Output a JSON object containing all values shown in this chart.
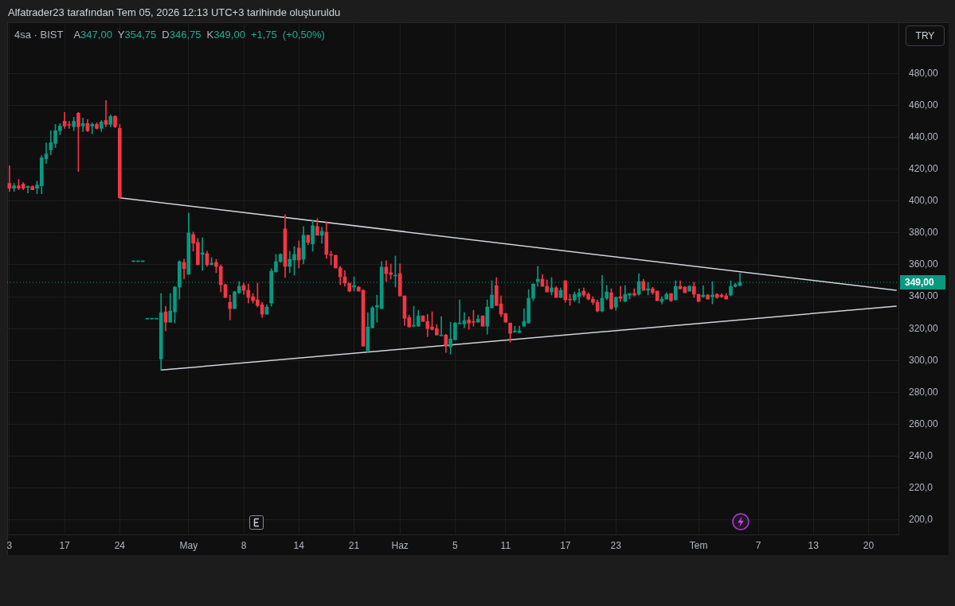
{
  "chart_data": {
    "type": "candlestick",
    "title": "Alfatrader23 tarafından Tem 05, 2026 12:13 UTC+3 tarihinde oluşturuldu",
    "subtitle": "4sa · BIST",
    "annotations": [
      "A347,00 Y354,75 D346,75 K349,00 +1,75 (+0,50%)",
      "TRY"
    ],
    "categories": [
      "3",
      null,
      null,
      null,
      null,
      null,
      null,
      null,
      null,
      null,
      null,
      null,
      "17",
      null,
      null,
      null,
      null,
      null,
      null,
      null,
      null,
      null,
      null,
      null,
      "24",
      null,
      null,
      null,
      null,
      null,
      null,
      null,
      null,
      null,
      null,
      null,
      null,
      null,
      null,
      "May",
      null,
      null,
      null,
      null,
      null,
      null,
      null,
      null,
      null,
      null,
      null,
      "8",
      null,
      null,
      null,
      null,
      null,
      null,
      null,
      null,
      null,
      null,
      null,
      "14",
      null,
      null,
      null,
      null,
      null,
      null,
      null,
      null,
      null,
      null,
      null,
      "21",
      null,
      null,
      null,
      null,
      null,
      null,
      null,
      null,
      null,
      "Haz",
      null,
      null,
      null,
      null,
      null,
      null,
      null,
      null,
      null,
      null,
      null,
      "5",
      null,
      null,
      null,
      null,
      null,
      null,
      null,
      null,
      null,
      null,
      "11",
      null,
      null,
      null,
      null,
      null,
      null,
      null,
      null,
      null,
      null,
      null,
      null,
      "17",
      null,
      null,
      null,
      null,
      null,
      null,
      null,
      null,
      null,
      null,
      "23",
      null,
      null,
      null,
      null,
      null,
      null,
      null,
      null,
      null,
      null,
      null,
      null,
      null,
      null,
      null,
      null,
      null,
      "Tem",
      null,
      null,
      null,
      null,
      null,
      null,
      null,
      null,
      null,
      null,
      null,
      null,
      "7",
      null,
      null,
      null,
      null,
      null,
      null,
      null,
      null,
      null,
      null,
      null,
      "13",
      null,
      null,
      null,
      null,
      null,
      null,
      null,
      null,
      null,
      null,
      null,
      "20",
      null,
      null,
      null,
      null,
      null,
      null
    ],
    "ohlc": [
      [
        411,
        422,
        406,
        408
      ],
      [
        408,
        411,
        406,
        409.5
      ],
      [
        409.5,
        413.5,
        407,
        408
      ],
      [
        410.5,
        411.5,
        407,
        408
      ],
      [
        408.5,
        409.5,
        405,
        409
      ],
      [
        409,
        409.5,
        407,
        407
      ],
      [
        408,
        412.5,
        404.5,
        410
      ],
      [
        409.5,
        428.5,
        404.5,
        427
      ],
      [
        426.5,
        436.5,
        423.5,
        429.5
      ],
      [
        432,
        444,
        429,
        436.5
      ],
      [
        436,
        448,
        433.5,
        444
      ],
      [
        444,
        448.5,
        441.5,
        447
      ],
      [
        450,
        455.5,
        445.5,
        447
      ],
      [
        448,
        450,
        445.5,
        447.5
      ],
      [
        446.5,
        452.5,
        444,
        450
      ],
      [
        455,
        455.5,
        418.5,
        446.5
      ],
      [
        447,
        452,
        443.5,
        448.5
      ],
      [
        448.5,
        451,
        443.5,
        444
      ],
      [
        447,
        449,
        442,
        448
      ],
      [
        448,
        449,
        445,
        445.5
      ],
      [
        445.5,
        450.5,
        443.5,
        449.5
      ],
      [
        450.5,
        463,
        446.5,
        448
      ],
      [
        448,
        454,
        446.5,
        453
      ],
      [
        453,
        453.5,
        446,
        446.5
      ],
      [
        445.5,
        448,
        402,
        402
      ],
      null,
      null,
      [
        362,
        362,
        362,
        362
      ],
      [
        362,
        362,
        362,
        362
      ],
      [
        362,
        362,
        362,
        362
      ],
      [
        326,
        326,
        326,
        326
      ],
      [
        326,
        326,
        326,
        326
      ],
      [
        326,
        326,
        326,
        326
      ],
      [
        301,
        342,
        294,
        330
      ],
      [
        330.5,
        334,
        318.5,
        324
      ],
      [
        324,
        342,
        324,
        331
      ],
      [
        330.5,
        346.5,
        323.5,
        346
      ],
      [
        346,
        362.5,
        338.5,
        362
      ],
      [
        361.5,
        363.5,
        351,
        357.5
      ],
      [
        354,
        392.5,
        354,
        380
      ],
      [
        379,
        380.5,
        368.5,
        373.5
      ],
      [
        374,
        376.5,
        360,
        360
      ],
      [
        366.5,
        377,
        356.5,
        367.5
      ],
      [
        367,
        368.5,
        359,
        360
      ],
      [
        360,
        364.5,
        360,
        361
      ],
      [
        361.5,
        363.5,
        355,
        359
      ],
      [
        359,
        360,
        343,
        347.5
      ],
      [
        347.5,
        348,
        339.5,
        339.5
      ],
      [
        336.5,
        341,
        325.5,
        332.5
      ],
      [
        332.5,
        343.5,
        332.5,
        343
      ],
      [
        342.5,
        349.5,
        342,
        346.5
      ],
      [
        347,
        348.5,
        341.5,
        344
      ],
      [
        344,
        348,
        336,
        339.5
      ],
      [
        340,
        342,
        336,
        337.5
      ],
      [
        338,
        348.5,
        333.5,
        334.5
      ],
      [
        335,
        336.5,
        327,
        329
      ],
      [
        329,
        335,
        329,
        333.5
      ],
      [
        336,
        357.5,
        334,
        356
      ],
      [
        355.5,
        366.5,
        355.5,
        362
      ],
      [
        362,
        367,
        361.5,
        366.5
      ],
      [
        382.5,
        391.5,
        352,
        359
      ],
      [
        359,
        368.5,
        355,
        363.5
      ],
      [
        363,
        371.5,
        353.5,
        366.5
      ],
      [
        370.5,
        375,
        358,
        363
      ],
      [
        363.5,
        384,
        360.5,
        378.5
      ],
      [
        378.5,
        378.5,
        372.5,
        374
      ],
      [
        373,
        388,
        368.5,
        384.5
      ],
      [
        384,
        389,
        378.5,
        378.5
      ],
      [
        378.5,
        383.5,
        373.5,
        381
      ],
      [
        380.5,
        387,
        364,
        366.5
      ],
      [
        366.5,
        368.5,
        360,
        366
      ],
      [
        366,
        366,
        358,
        358
      ],
      [
        358,
        359,
        347.5,
        352.5
      ],
      [
        352.5,
        356.5,
        346.5,
        348.5
      ],
      [
        348.5,
        348.5,
        343,
        343.5
      ],
      [
        346,
        352.5,
        343.5,
        347
      ],
      [
        346,
        346.5,
        343.5,
        343.5
      ],
      [
        344,
        344.5,
        309,
        309
      ],
      [
        306,
        330,
        305,
        321
      ],
      [
        320.5,
        334,
        320.5,
        333
      ],
      [
        333.5,
        341,
        324,
        334.5
      ],
      [
        332.5,
        362,
        332.5,
        358.5
      ],
      [
        358.5,
        362.5,
        349.5,
        354.5
      ],
      [
        355,
        360.5,
        351,
        354
      ],
      [
        353,
        365.5,
        346,
        353.5
      ],
      [
        354.5,
        360.5,
        340.5,
        340.5
      ],
      [
        340.5,
        340.5,
        322,
        326.5
      ],
      [
        327,
        328.5,
        321,
        321
      ],
      [
        321.5,
        334,
        321,
        322
      ],
      [
        321.5,
        331.5,
        321.5,
        328
      ],
      [
        328,
        328,
        324.5,
        324.5
      ],
      [
        324.5,
        329,
        315,
        320
      ],
      [
        321,
        330.5,
        319,
        319.5
      ],
      [
        320,
        322.5,
        316,
        316
      ],
      [
        315.5,
        327.5,
        315.5,
        316
      ],
      [
        316,
        316.5,
        305,
        309
      ],
      [
        308.5,
        324,
        304,
        313.5
      ],
      [
        313,
        324,
        313,
        323.5
      ],
      [
        323,
        338,
        323,
        323.5
      ],
      [
        323,
        330,
        320.5,
        325
      ],
      [
        325.5,
        327.5,
        319.5,
        323.5
      ],
      [
        324.5,
        331.5,
        321.5,
        324
      ],
      [
        324,
        328.5,
        324,
        326
      ],
      [
        328,
        328,
        321.5,
        321.5
      ],
      [
        321.5,
        338,
        316.5,
        333.5
      ],
      [
        333,
        350,
        333,
        341
      ],
      [
        347,
        352,
        334.5,
        334.5
      ],
      [
        335.5,
        340.5,
        327.5,
        329
      ],
      [
        329.5,
        329.5,
        324,
        324
      ],
      [
        323.5,
        323.5,
        311.5,
        317
      ],
      [
        318,
        321.5,
        317.5,
        318.5
      ],
      [
        317.5,
        321.5,
        317.5,
        318.5
      ],
      [
        321.5,
        332.5,
        321.5,
        324.5
      ],
      [
        323.5,
        344.5,
        323.5,
        339
      ],
      [
        339,
        348,
        337.5,
        348
      ],
      [
        349.5,
        359,
        346.5,
        351
      ],
      [
        351,
        354,
        346.5,
        346.5
      ],
      [
        346.5,
        350.5,
        343,
        343
      ],
      [
        343,
        352,
        341,
        345.5
      ],
      [
        345.5,
        346.5,
        339.5,
        339.5
      ],
      [
        339.5,
        345.5,
        339.5,
        344
      ],
      [
        350,
        350,
        336.5,
        338
      ],
      [
        338.5,
        341.5,
        334.5,
        338
      ],
      [
        338,
        343,
        337,
        341.5
      ],
      [
        340,
        345,
        336,
        342.5
      ],
      [
        343.5,
        345.5,
        340,
        341
      ],
      [
        341.5,
        342.5,
        338,
        338.5
      ],
      [
        338.5,
        340,
        335,
        336.5
      ],
      [
        336.5,
        338,
        330.5,
        331
      ],
      [
        331,
        353.5,
        330.5,
        339
      ],
      [
        339,
        347,
        338,
        343
      ],
      [
        342.5,
        345,
        332,
        332.5
      ],
      [
        333.5,
        340,
        331.5,
        339.5
      ],
      [
        340,
        346.5,
        337,
        339
      ],
      [
        337,
        347,
        337,
        341.5
      ],
      [
        341,
        342,
        338.5,
        342
      ],
      [
        342,
        345,
        340.5,
        341
      ],
      [
        341.5,
        354.5,
        341,
        349.5
      ],
      [
        349.5,
        351,
        344,
        344
      ],
      [
        344,
        349,
        341,
        345
      ],
      [
        345,
        346,
        341.5,
        342.5
      ],
      [
        343.5,
        343.5,
        337.5,
        337.5
      ],
      [
        337,
        340,
        335.5,
        338.5
      ],
      [
        338.5,
        342.5,
        338.5,
        341.5
      ],
      [
        342,
        342,
        337,
        337.5
      ],
      [
        338,
        350,
        338,
        346.5
      ],
      [
        346.5,
        350,
        344.5,
        345
      ],
      [
        346,
        346.5,
        342.5,
        342.5
      ],
      [
        343.5,
        347,
        343.5,
        346.5
      ],
      [
        346.5,
        349,
        339.5,
        341.5
      ],
      [
        341.5,
        341.5,
        337,
        337
      ],
      [
        340,
        347,
        339.5,
        341
      ],
      [
        341,
        341.5,
        338.5,
        338.5
      ],
      [
        340,
        349.5,
        335.5,
        341
      ],
      [
        341.5,
        342,
        339,
        339.5
      ],
      [
        341,
        342,
        339.5,
        340
      ],
      [
        340.5,
        342,
        338.5,
        338.5
      ],
      [
        341,
        350,
        340.5,
        346.5
      ],
      [
        346.5,
        348.5,
        346,
        347.5
      ],
      [
        347,
        354.75,
        346.75,
        349
      ],
      null,
      null,
      null,
      null,
      null,
      null,
      null,
      null,
      null,
      null,
      null,
      null,
      null,
      null,
      null,
      null,
      null,
      null,
      null,
      null,
      null,
      null,
      null,
      null,
      null,
      null,
      null,
      null,
      null,
      null,
      null,
      null,
      null,
      null
    ],
    "colors": [
      "#f23645",
      "#089981",
      "#f23645",
      "#f23645",
      "#089981",
      "#f23645",
      "#089981",
      "#089981",
      "#089981",
      "#089981",
      "#089981",
      "#089981",
      "#f23645",
      "#f23645",
      "#089981",
      "#f23645",
      "#089981",
      "#f23645",
      "#089981",
      "#f23645",
      "#089981",
      "#f23645",
      "#089981",
      "#f23645",
      "#f23645",
      null,
      null,
      "#089981",
      "#089981",
      "#089981",
      "#089981",
      "#089981",
      "#089981",
      "#089981",
      "#f23645",
      "#089981",
      "#089981",
      "#089981",
      "#f23645",
      "#089981",
      "#f23645",
      "#f23645",
      "#089981",
      "#f23645",
      "#089981",
      "#f23645",
      "#f23645",
      "#f23645",
      "#f23645",
      "#089981",
      "#089981",
      "#f23645",
      "#f23645",
      "#f23645",
      "#f23645",
      "#f23645",
      "#089981",
      "#089981",
      "#089981",
      "#089981",
      "#f23645",
      "#089981",
      "#089981",
      "#f23645",
      "#089981",
      "#f23645",
      "#089981",
      "#f23645",
      "#089981",
      "#f23645",
      "#f23645",
      "#f23645",
      "#f23645",
      "#f23645",
      "#f23645",
      "#089981",
      "#f23645",
      "#f23645",
      "#089981",
      "#089981",
      "#089981",
      "#089981",
      "#f23645",
      "#f23645",
      "#089981",
      "#f23645",
      "#f23645",
      "#f23645",
      "#089981",
      "#089981",
      "#f23645",
      "#f23645",
      "#f23645",
      "#f23645",
      "#089981",
      "#f23645",
      "#089981",
      "#089981",
      "#089981",
      "#089981",
      "#f23645",
      "#f23645",
      "#089981",
      "#f23645",
      "#089981",
      "#089981",
      "#f23645",
      "#f23645",
      "#f23645",
      "#f23645",
      "#089981",
      "#089981",
      "#089981",
      "#089981",
      "#089981",
      "#089981",
      "#f23645",
      "#f23645",
      "#089981",
      "#f23645",
      "#089981",
      "#f23645",
      "#f23645",
      "#089981",
      "#089981",
      "#f23645",
      "#f23645",
      "#f23645",
      "#f23645",
      "#089981",
      "#089981",
      "#f23645",
      "#089981",
      "#f23645",
      "#089981",
      "#089981",
      "#f23645",
      "#089981",
      "#f23645",
      "#089981",
      "#f23645",
      "#f23645",
      "#089981",
      "#089981",
      "#f23645",
      "#089981",
      "#f23645",
      "#f23645",
      "#089981",
      "#f23645",
      "#f23645",
      "#089981",
      "#f23645",
      "#089981",
      "#f23645",
      "#f23645",
      "#f23645",
      "#089981",
      "#089981",
      "#089981",
      null,
      null,
      null,
      null,
      null,
      null,
      null,
      null,
      null,
      null,
      null,
      null,
      null,
      null,
      null,
      null,
      null,
      null,
      null,
      null,
      null,
      null,
      null,
      null,
      null,
      null,
      null,
      null,
      null,
      null,
      null,
      null,
      null,
      null
    ],
    "series": [
      {
        "type": "line",
        "color": "#d1d4dc",
        "values": [
          null,
          null,
          null,
          null,
          null,
          null,
          null,
          null,
          null,
          null,
          null,
          null,
          null,
          null,
          null,
          null,
          null,
          null,
          null,
          null,
          null,
          null,
          null,
          null,
          402,
          null,
          null,
          null,
          null,
          null,
          null,
          null,
          null,
          null,
          null,
          null,
          null,
          null,
          null,
          null,
          null,
          null,
          null,
          null,
          null,
          null,
          null,
          null,
          null,
          null,
          null,
          null,
          null,
          null,
          null,
          null,
          null,
          null,
          null,
          null,
          null,
          null,
          null,
          null,
          null,
          null,
          null,
          null,
          null,
          null,
          null,
          null,
          null,
          null,
          null,
          null,
          null,
          null,
          null,
          null,
          null,
          null,
          null,
          null,
          null,
          null,
          null,
          null,
          null,
          null,
          null,
          null,
          null,
          null,
          null,
          null,
          null,
          null,
          null,
          null,
          null,
          null,
          null,
          null,
          null,
          null,
          null,
          null,
          null,
          null,
          null,
          null,
          null,
          null,
          null,
          null,
          null,
          null,
          null,
          null,
          null,
          null,
          null,
          null,
          null,
          null,
          null,
          null,
          null,
          null,
          null,
          null,
          null,
          null,
          null,
          null,
          null,
          null,
          null,
          null,
          null,
          null,
          null,
          null,
          null,
          null,
          null,
          null,
          null,
          null,
          null,
          null,
          null,
          null,
          null,
          null,
          null,
          null,
          null,
          null,
          null,
          null,
          null,
          null,
          null,
          null,
          null,
          null,
          null,
          null,
          null,
          null,
          null,
          null,
          null,
          null,
          null,
          null,
          null,
          null,
          null,
          null,
          null,
          null,
          null,
          null,
          null,
          null,
          null,
          null,
          null,
          null,
          null,
          344
        ]
      },
      {
        "type": "line",
        "color": "#d1d4dc",
        "values": [
          null,
          null,
          null,
          null,
          null,
          null,
          null,
          null,
          null,
          null,
          null,
          null,
          null,
          null,
          null,
          null,
          null,
          null,
          null,
          null,
          null,
          null,
          null,
          null,
          null,
          null,
          null,
          null,
          null,
          null,
          null,
          null,
          null,
          294,
          null,
          null,
          null,
          null,
          null,
          null,
          null,
          null,
          null,
          null,
          null,
          null,
          null,
          null,
          null,
          null,
          null,
          null,
          null,
          null,
          null,
          null,
          null,
          null,
          null,
          null,
          null,
          null,
          null,
          null,
          null,
          null,
          null,
          null,
          null,
          null,
          null,
          null,
          null,
          null,
          null,
          null,
          null,
          null,
          null,
          null,
          null,
          null,
          null,
          null,
          null,
          null,
          null,
          null,
          null,
          null,
          null,
          null,
          null,
          null,
          null,
          null,
          null,
          null,
          null,
          null,
          null,
          null,
          null,
          null,
          null,
          null,
          null,
          null,
          null,
          null,
          null,
          null,
          null,
          null,
          null,
          null,
          null,
          null,
          null,
          null,
          null,
          null,
          null,
          null,
          null,
          null,
          null,
          null,
          null,
          null,
          null,
          null,
          null,
          null,
          null,
          null,
          null,
          null,
          null,
          null,
          null,
          null,
          null,
          null,
          null,
          null,
          null,
          null,
          null,
          null,
          null,
          null,
          null,
          null,
          null,
          null,
          null,
          null,
          null,
          null,
          null,
          null,
          null,
          null,
          null,
          null,
          null,
          null,
          null,
          null,
          null,
          null,
          null,
          null,
          null,
          null,
          null,
          null,
          null,
          null,
          null,
          null,
          null,
          null,
          null,
          null,
          null,
          null,
          null,
          null,
          null,
          null,
          null,
          334
        ]
      }
    ],
    "ylim": [
      191,
      512
    ],
    "yticks": [
      {
        "value": 200,
        "label": "200,0"
      },
      {
        "value": 220,
        "label": "220,0"
      },
      {
        "value": 240,
        "label": "240,0"
      },
      {
        "value": 260,
        "label": "260,00"
      },
      {
        "value": 280,
        "label": "280,00"
      },
      {
        "value": 300,
        "label": "300,00"
      },
      {
        "value": 320,
        "label": "320,00"
      },
      {
        "value": 340,
        "label": "340,00"
      },
      {
        "value": 360,
        "label": "360,00"
      },
      {
        "value": 380,
        "label": "380,00"
      },
      {
        "value": 400,
        "label": "400,00"
      },
      {
        "value": 420,
        "label": "420,00"
      },
      {
        "value": 440,
        "label": "440,00"
      },
      {
        "value": 460,
        "label": "460,00"
      },
      {
        "value": 480,
        "label": "480,00"
      }
    ],
    "grid": true,
    "ref_lines": [
      {
        "axis": "y",
        "value": 349,
        "label": "349,00",
        "color": "#089981",
        "line_style": "dotted"
      }
    ]
  }
}
